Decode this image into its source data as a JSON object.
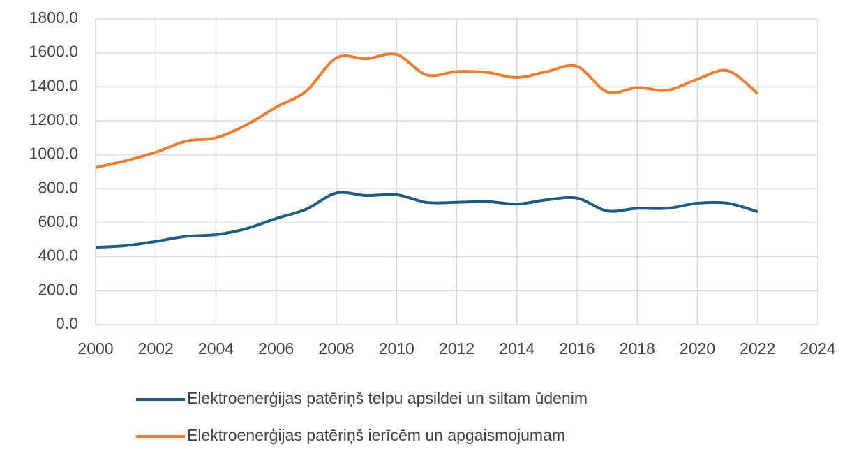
{
  "chart_data": {
    "type": "line",
    "x": [
      2000,
      2001,
      2002,
      2003,
      2004,
      2005,
      2006,
      2007,
      2008,
      2009,
      2010,
      2011,
      2012,
      2013,
      2014,
      2015,
      2016,
      2017,
      2018,
      2019,
      2020,
      2021,
      2022
    ],
    "series": [
      {
        "name": "Elektroenerģijas patēriņš telpu apsildei un siltam ūdenim",
        "color": "#1f5c82",
        "values": [
          455,
          465,
          490,
          520,
          530,
          565,
          625,
          680,
          775,
          760,
          765,
          720,
          720,
          725,
          710,
          735,
          745,
          670,
          685,
          685,
          715,
          715,
          665
        ]
      },
      {
        "name": "Elektroenerģijas patēriņš ierīcēm un apgaismojumam",
        "color": "#ed7d31",
        "values": [
          925,
          965,
          1015,
          1080,
          1100,
          1175,
          1280,
          1375,
          1570,
          1565,
          1590,
          1470,
          1490,
          1485,
          1455,
          1490,
          1520,
          1370,
          1395,
          1380,
          1445,
          1495,
          1360
        ]
      }
    ],
    "xlim": [
      2000,
      2024
    ],
    "xticks": [
      2000,
      2002,
      2004,
      2006,
      2008,
      2010,
      2012,
      2014,
      2016,
      2018,
      2020,
      2022,
      2024
    ],
    "ylim": [
      0,
      1800
    ],
    "yticks": [
      {
        "value": 0,
        "label": "0.0"
      },
      {
        "value": 200,
        "label": "200.0"
      },
      {
        "value": 400,
        "label": "400.0"
      },
      {
        "value": 600,
        "label": "600.0"
      },
      {
        "value": 800,
        "label": "800.0"
      },
      {
        "value": 1000,
        "label": "1000.0"
      },
      {
        "value": 1200,
        "label": "1200.0"
      },
      {
        "value": 1400,
        "label": "1400.0"
      },
      {
        "value": 1600,
        "label": "1600.0"
      },
      {
        "value": 1800,
        "label": "1800.0"
      }
    ],
    "grid": true
  }
}
